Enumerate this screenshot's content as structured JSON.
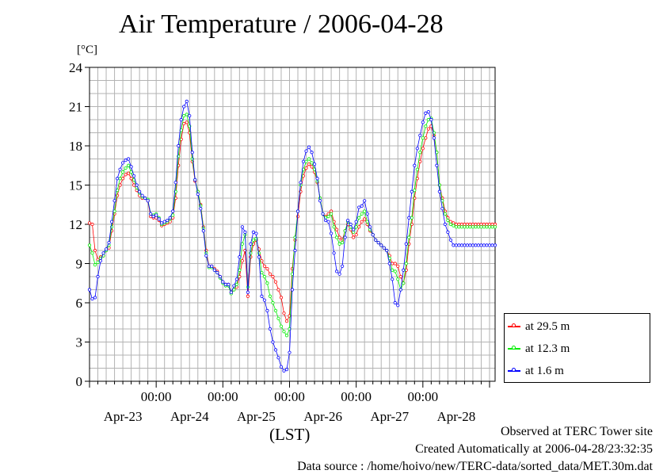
{
  "chart_data": {
    "type": "line",
    "title": "Air Temperature / 2006-04-28",
    "unit_label": "[°C]",
    "xlabel": "(LST)",
    "ylim": [
      0,
      24
    ],
    "yticks": [
      0,
      3,
      6,
      9,
      12,
      15,
      18,
      21,
      24
    ],
    "x_range_hours": [
      0,
      146
    ],
    "time_ticks": [
      {
        "hour": 24,
        "time": "00:00"
      },
      {
        "hour": 48,
        "time": "00:00"
      },
      {
        "hour": 72,
        "time": "00:00"
      },
      {
        "hour": 96,
        "time": "00:00"
      },
      {
        "hour": 120,
        "time": "00:00"
      }
    ],
    "date_labels": [
      {
        "hour": 12,
        "label": "Apr-23"
      },
      {
        "hour": 36,
        "label": "Apr-24"
      },
      {
        "hour": 60,
        "label": "Apr-25"
      },
      {
        "hour": 84,
        "label": "Apr-26"
      },
      {
        "hour": 108,
        "label": "Apr-27"
      },
      {
        "hour": 132,
        "label": "Apr-28"
      }
    ],
    "grid": true,
    "legend_position": "bottom-right outside",
    "x": [
      0,
      1,
      2,
      3,
      4,
      5,
      6,
      7,
      8,
      9,
      10,
      11,
      12,
      13,
      14,
      15,
      16,
      17,
      18,
      19,
      20,
      21,
      22,
      23,
      24,
      25,
      26,
      27,
      28,
      29,
      30,
      31,
      32,
      33,
      34,
      35,
      36,
      37,
      38,
      39,
      40,
      41,
      42,
      43,
      44,
      45,
      46,
      47,
      48,
      49,
      50,
      51,
      52,
      53,
      54,
      55,
      56,
      57,
      58,
      59,
      60,
      61,
      62,
      63,
      64,
      65,
      66,
      67,
      68,
      69,
      70,
      71,
      72,
      73,
      74,
      75,
      76,
      77,
      78,
      79,
      80,
      81,
      82,
      83,
      84,
      85,
      86,
      87,
      88,
      89,
      90,
      91,
      92,
      93,
      94,
      95,
      96,
      97,
      98,
      99,
      100,
      101,
      102,
      103,
      104,
      105,
      106,
      107,
      108,
      109,
      110,
      111,
      112,
      113,
      114,
      115,
      116,
      117,
      118,
      119,
      120,
      121,
      122,
      123,
      124,
      125,
      126,
      127,
      128,
      129,
      130,
      131,
      132,
      133,
      134,
      135,
      136,
      137,
      138,
      139,
      140,
      141,
      142,
      143,
      144,
      145,
      146
    ],
    "series": [
      {
        "name": "at 29.5 m",
        "color": "#ff0000",
        "values": [
          12.1,
          12.0,
          10.0,
          9.3,
          9.5,
          9.6,
          10.0,
          10.2,
          11.5,
          12.8,
          14.2,
          15.0,
          15.5,
          15.8,
          15.9,
          15.5,
          15.0,
          14.6,
          14.2,
          14.0,
          14.0,
          13.8,
          12.6,
          12.5,
          12.5,
          12.3,
          11.9,
          12.0,
          12.1,
          12.2,
          12.5,
          14.0,
          16.5,
          18.5,
          19.7,
          19.8,
          19.0,
          16.8,
          15.3,
          14.5,
          13.5,
          11.8,
          10.0,
          8.8,
          8.8,
          8.6,
          8.4,
          8.0,
          7.6,
          7.4,
          7.4,
          6.8,
          7.0,
          7.2,
          8.0,
          9.2,
          10.0,
          6.5,
          9.5,
          10.5,
          10.8,
          10.1,
          9.2,
          8.8,
          8.6,
          8.2,
          8.0,
          7.6,
          7.0,
          6.4,
          5.2,
          4.6,
          5.0,
          8.6,
          10.8,
          12.6,
          14.5,
          15.7,
          16.3,
          16.6,
          16.4,
          16.0,
          15.2,
          14.0,
          12.8,
          12.6,
          12.8,
          13.0,
          12.2,
          11.6,
          11.0,
          10.8,
          11.5,
          12.0,
          11.6,
          11.0,
          11.2,
          11.8,
          12.2,
          12.4,
          12.0,
          11.5,
          11.2,
          10.8,
          10.6,
          10.4,
          10.2,
          10.0,
          9.6,
          9.0,
          9.0,
          8.8,
          8.0,
          7.5,
          8.5,
          10.5,
          12.0,
          14.0,
          15.5,
          16.8,
          17.8,
          18.6,
          19.3,
          19.5,
          18.8,
          17.5,
          15.0,
          14.0,
          13.0,
          12.5,
          12.2,
          12.1,
          12.0,
          12.0,
          12.0,
          12.0,
          12.0,
          12.0,
          12.0,
          12.0,
          12.0,
          12.0,
          12.0,
          12.0,
          12.0,
          12.0,
          12.0
        ]
      },
      {
        "name": "at 12.3 m",
        "color": "#00ee00",
        "values": [
          10.4,
          9.8,
          8.9,
          9.1,
          9.4,
          9.6,
          10.0,
          10.4,
          11.8,
          13.0,
          14.6,
          15.5,
          16.0,
          16.3,
          16.5,
          16.0,
          15.4,
          14.8,
          14.4,
          14.1,
          14.0,
          13.9,
          12.8,
          12.7,
          12.8,
          12.5,
          12.0,
          12.1,
          12.2,
          12.4,
          12.7,
          14.5,
          17.2,
          19.2,
          20.3,
          20.4,
          19.5,
          17.0,
          15.4,
          14.5,
          13.4,
          11.7,
          9.8,
          8.7,
          8.7,
          8.5,
          8.3,
          7.9,
          7.5,
          7.3,
          7.3,
          6.7,
          7.0,
          7.4,
          8.5,
          10.5,
          11.2,
          7.2,
          9.8,
          10.8,
          10.9,
          9.8,
          8.3,
          8.0,
          7.5,
          6.5,
          6.0,
          5.4,
          4.8,
          4.2,
          3.8,
          3.5,
          4.0,
          8.2,
          11.0,
          13.0,
          15.0,
          16.2,
          16.8,
          17.0,
          16.7,
          16.2,
          15.3,
          14.0,
          12.8,
          12.5,
          12.6,
          12.8,
          11.8,
          11.0,
          10.5,
          10.6,
          11.5,
          12.2,
          11.8,
          11.4,
          11.8,
          12.5,
          12.8,
          13.0,
          12.2,
          11.6,
          11.2,
          10.8,
          10.6,
          10.4,
          10.2,
          10.0,
          9.4,
          8.5,
          8.4,
          7.8,
          7.0,
          7.5,
          9.0,
          11.0,
          12.5,
          14.6,
          16.2,
          17.5,
          18.6,
          19.5,
          20.0,
          20.1,
          19.0,
          17.5,
          15.0,
          13.8,
          12.8,
          12.3,
          12.0,
          11.9,
          11.8,
          11.8,
          11.8,
          11.8,
          11.8,
          11.8,
          11.8,
          11.8,
          11.8,
          11.8,
          11.8,
          11.8,
          11.8,
          11.8,
          11.8
        ]
      },
      {
        "name": "at 1.6 m",
        "color": "#0000ff",
        "values": [
          7.0,
          6.3,
          6.4,
          8.0,
          9.2,
          9.8,
          10.1,
          10.6,
          12.2,
          13.8,
          15.5,
          16.2,
          16.7,
          16.9,
          17.0,
          16.4,
          15.7,
          15.0,
          14.5,
          14.2,
          14.0,
          13.8,
          12.8,
          12.6,
          12.7,
          12.4,
          12.1,
          12.2,
          12.3,
          12.5,
          13.0,
          15.2,
          18.0,
          20.0,
          21.0,
          21.4,
          20.3,
          17.5,
          15.4,
          14.3,
          13.2,
          11.5,
          9.6,
          8.8,
          8.8,
          8.5,
          8.3,
          8.0,
          7.6,
          7.4,
          7.4,
          6.8,
          7.3,
          7.8,
          9.5,
          11.8,
          11.4,
          6.8,
          10.5,
          11.4,
          11.3,
          9.5,
          6.5,
          6.2,
          5.4,
          4.0,
          3.0,
          2.4,
          1.8,
          1.1,
          0.8,
          0.9,
          2.2,
          7.0,
          10.0,
          13.0,
          15.2,
          16.8,
          17.6,
          17.9,
          17.5,
          16.6,
          15.5,
          13.8,
          12.8,
          12.3,
          12.2,
          11.3,
          9.8,
          8.4,
          8.2,
          8.8,
          11.0,
          12.3,
          12.0,
          11.6,
          12.2,
          13.3,
          13.4,
          13.8,
          12.8,
          11.8,
          11.2,
          10.8,
          10.6,
          10.4,
          10.2,
          10.0,
          9.0,
          7.8,
          6.0,
          5.8,
          7.0,
          8.5,
          10.5,
          12.5,
          14.5,
          16.5,
          17.8,
          18.8,
          19.8,
          20.5,
          20.6,
          20.0,
          18.6,
          16.5,
          14.5,
          13.2,
          12.0,
          11.4,
          10.8,
          10.4,
          10.4,
          10.4,
          10.4,
          10.4,
          10.4,
          10.4,
          10.4,
          10.4,
          10.4,
          10.4,
          10.4,
          10.4,
          10.4,
          10.4,
          10.4
        ]
      }
    ]
  },
  "footer": {
    "line1": "Observed at TERC Tower site",
    "line2": "Created Automatically at 2006-04-28/23:32:35",
    "line3": "Data source : /home/hoivo/new/TERC-data/sorted_data/MET.30m.dat"
  }
}
